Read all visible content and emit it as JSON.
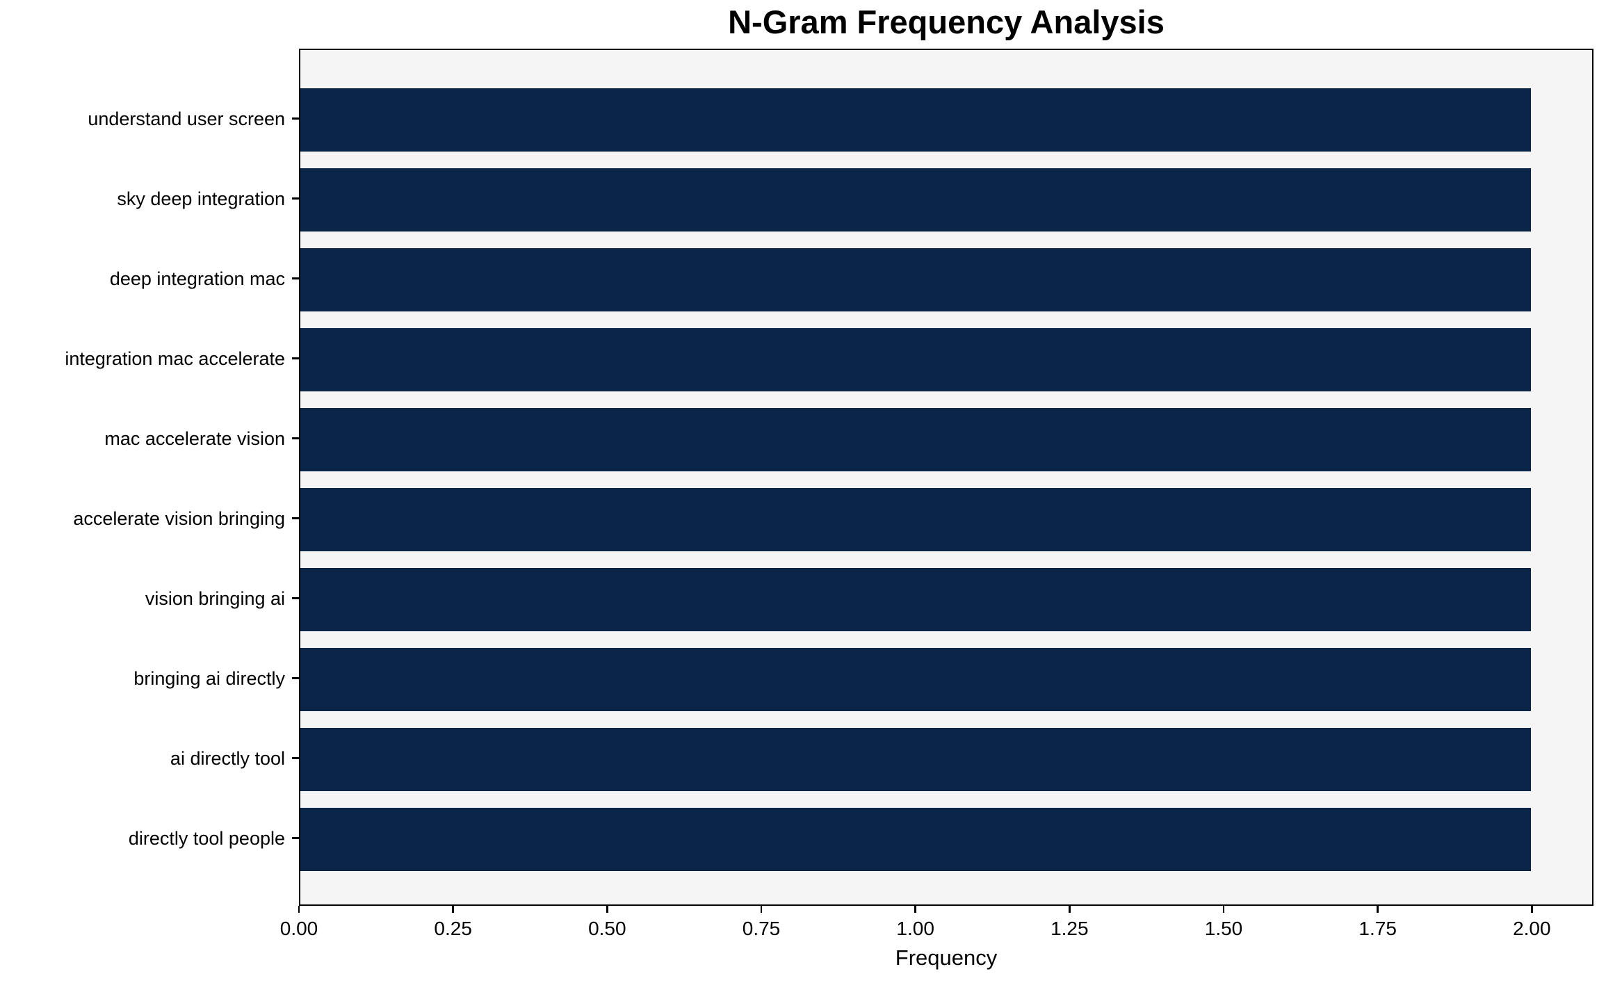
{
  "chart_data": {
    "type": "bar",
    "orientation": "horizontal",
    "title": "N-Gram Frequency Analysis",
    "xlabel": "Frequency",
    "ylabel": "",
    "categories": [
      "understand user screen",
      "sky deep integration",
      "deep integration mac",
      "integration mac accelerate",
      "mac accelerate vision",
      "accelerate vision bringing",
      "vision bringing ai",
      "bringing ai directly",
      "ai directly tool",
      "directly tool people"
    ],
    "values": [
      2,
      2,
      2,
      2,
      2,
      2,
      2,
      2,
      2,
      2
    ],
    "xlim": [
      0,
      2.1
    ],
    "x_ticks": [
      {
        "value": 0.0,
        "label": "0.00"
      },
      {
        "value": 0.25,
        "label": "0.25"
      },
      {
        "value": 0.5,
        "label": "0.50"
      },
      {
        "value": 0.75,
        "label": "0.75"
      },
      {
        "value": 1.0,
        "label": "1.00"
      },
      {
        "value": 1.25,
        "label": "1.25"
      },
      {
        "value": 1.5,
        "label": "1.50"
      },
      {
        "value": 1.75,
        "label": "1.75"
      },
      {
        "value": 2.0,
        "label": "2.00"
      }
    ],
    "grid": false,
    "legend": null,
    "colors": {
      "bar": "#0b2548",
      "plot_background": "#f5f5f5",
      "figure_background": "#ffffff",
      "axis": "#000000",
      "text": "#000000"
    }
  }
}
